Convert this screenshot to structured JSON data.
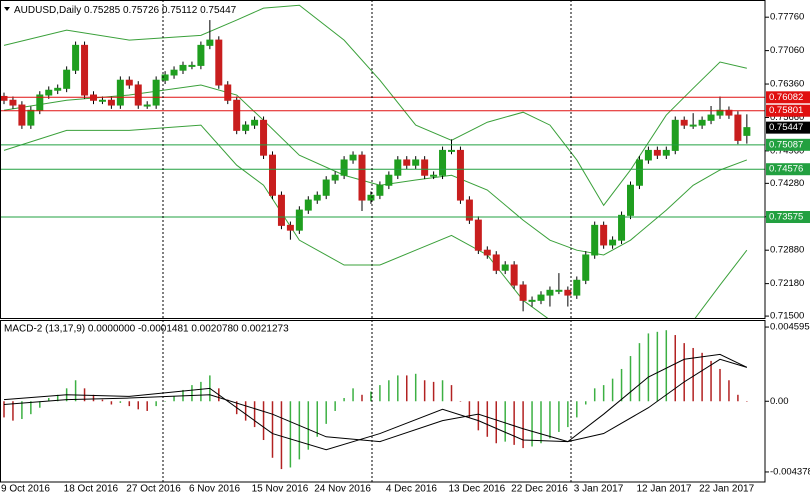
{
  "chart_data": [
    {
      "type": "candlestick",
      "title": "AUDUSD,Daily",
      "categories": [
        "9 Oct 2016",
        null,
        null,
        null,
        null,
        null,
        null,
        "18 Oct 2016",
        null,
        null,
        null,
        null,
        null,
        null,
        "27 Oct 2016",
        null,
        null,
        null,
        null,
        null,
        null,
        "6 Nov 2016",
        null,
        null,
        null,
        null,
        null,
        null,
        "15 Nov 2016",
        null,
        null,
        null,
        null,
        null,
        null,
        "24 Nov 2016",
        null,
        null,
        null,
        null,
        null,
        null,
        null,
        "4 Dec 2016",
        null,
        null,
        null,
        null,
        null,
        null,
        "13 Dec 2016",
        null,
        null,
        null,
        null,
        null,
        null,
        "22 Dec 2016",
        null,
        null,
        null,
        null,
        null,
        null,
        "3 Jan 2017",
        null,
        null,
        null,
        null,
        null,
        null,
        "12 Jan 2017",
        null,
        null,
        null,
        null,
        null,
        null,
        "22 Jan 2017",
        null,
        null,
        null,
        null,
        null
      ],
      "open": [
        0.761,
        0.7602,
        0.7592,
        0.755,
        0.7581,
        0.7613,
        0.7623,
        0.7627,
        0.7665,
        0.7717,
        0.7613,
        0.7602,
        0.7602,
        0.7592,
        0.7644,
        0.7634,
        0.7592,
        0.7592,
        0.7644,
        0.7655,
        0.7665,
        0.7675,
        0.7675,
        0.7717,
        0.7728,
        0.7634,
        0.7602,
        0.7539,
        0.755,
        0.756,
        0.7487,
        0.7403,
        0.734,
        0.733,
        0.7372,
        0.7393,
        0.7403,
        0.7435,
        0.7445,
        0.7477,
        0.7487,
        0.7393,
        0.7403,
        0.7424,
        0.7445,
        0.7477,
        0.7466,
        0.7477,
        0.7445,
        0.7445,
        0.7497,
        0.7497,
        0.7393,
        0.7351,
        0.7288,
        0.7278,
        0.7246,
        0.7257,
        0.7215,
        0.7183,
        0.7183,
        0.7194,
        0.7204,
        0.7204,
        0.7194,
        0.7225,
        0.7278,
        0.734,
        0.7299,
        0.7309,
        0.7361,
        0.7424,
        0.7477,
        0.7497,
        0.7487,
        0.7497,
        0.756,
        0.755,
        0.755,
        0.756,
        0.7571,
        0.7581,
        0.7571,
        0.75285
      ],
      "high": [
        0.7618,
        0.761,
        0.76,
        0.7589,
        0.7621,
        0.7631,
        0.7635,
        0.7673,
        0.7725,
        0.7725,
        0.7621,
        0.761,
        0.761,
        0.7652,
        0.7652,
        0.7642,
        0.76,
        0.7652,
        0.7663,
        0.7673,
        0.7683,
        0.7683,
        0.7725,
        0.777,
        0.7736,
        0.7642,
        0.761,
        0.7558,
        0.7568,
        0.7568,
        0.7495,
        0.7411,
        0.7348,
        0.738,
        0.7401,
        0.7411,
        0.7443,
        0.7453,
        0.7485,
        0.7495,
        0.7495,
        0.7411,
        0.7432,
        0.7453,
        0.7485,
        0.7485,
        0.7485,
        0.7485,
        0.7453,
        0.7505,
        0.752,
        0.7505,
        0.7401,
        0.7359,
        0.7296,
        0.7286,
        0.7265,
        0.7265,
        0.7223,
        0.7191,
        0.7202,
        0.7212,
        0.724,
        0.7212,
        0.7233,
        0.7286,
        0.7348,
        0.7348,
        0.7317,
        0.7369,
        0.7432,
        0.7485,
        0.7505,
        0.7505,
        0.7505,
        0.7568,
        0.7568,
        0.7575,
        0.7568,
        0.759,
        0.761,
        0.7589,
        0.7579,
        0.75726
      ],
      "low": [
        0.7594,
        0.7584,
        0.7542,
        0.7542,
        0.7573,
        0.7605,
        0.7615,
        0.7619,
        0.7657,
        0.7605,
        0.7594,
        0.7594,
        0.7584,
        0.7584,
        0.7626,
        0.7584,
        0.7584,
        0.7584,
        0.7636,
        0.7647,
        0.7657,
        0.7667,
        0.7667,
        0.7709,
        0.7626,
        0.7594,
        0.7531,
        0.7531,
        0.7542,
        0.7479,
        0.7395,
        0.7332,
        0.731,
        0.7322,
        0.7364,
        0.7385,
        0.7395,
        0.7427,
        0.7437,
        0.7469,
        0.737,
        0.7385,
        0.7395,
        0.7416,
        0.7437,
        0.7458,
        0.7458,
        0.7437,
        0.7437,
        0.7437,
        0.7489,
        0.7385,
        0.7343,
        0.728,
        0.727,
        0.7238,
        0.7238,
        0.7207,
        0.716,
        0.717,
        0.7175,
        0.717,
        0.7196,
        0.717,
        0.7186,
        0.7217,
        0.727,
        0.7291,
        0.7291,
        0.7301,
        0.7353,
        0.7416,
        0.7469,
        0.7479,
        0.7479,
        0.7489,
        0.7542,
        0.7542,
        0.7542,
        0.7552,
        0.7563,
        0.7563,
        0.751,
        0.75112
      ],
      "close": [
        0.7602,
        0.7592,
        0.755,
        0.7581,
        0.7613,
        0.7623,
        0.7627,
        0.7665,
        0.7717,
        0.7613,
        0.7602,
        0.7602,
        0.7592,
        0.7644,
        0.7634,
        0.7592,
        0.7592,
        0.7644,
        0.7655,
        0.7665,
        0.7675,
        0.7675,
        0.7717,
        0.7728,
        0.7634,
        0.7602,
        0.7539,
        0.755,
        0.756,
        0.7487,
        0.7403,
        0.734,
        0.733,
        0.7372,
        0.7393,
        0.7403,
        0.7435,
        0.7445,
        0.7477,
        0.7487,
        0.7393,
        0.7403,
        0.7424,
        0.7445,
        0.7477,
        0.7466,
        0.7477,
        0.7445,
        0.7445,
        0.7497,
        0.7497,
        0.7393,
        0.7351,
        0.7288,
        0.7278,
        0.7246,
        0.7257,
        0.7215,
        0.7183,
        0.7183,
        0.7194,
        0.7204,
        0.7204,
        0.7194,
        0.7225,
        0.7278,
        0.734,
        0.7299,
        0.7309,
        0.7361,
        0.7424,
        0.7477,
        0.7497,
        0.7487,
        0.7497,
        0.756,
        0.755,
        0.755,
        0.756,
        0.7571,
        0.7581,
        0.7571,
        0.7518,
        0.75447
      ],
      "up_color": "#1f9e1f",
      "down_color": "#c81e1e",
      "ylim": [
        0.7146,
        0.7812
      ],
      "yticks": [
        {
          "value": 0.7776,
          "label": "0.77760"
        },
        {
          "value": 0.7706,
          "label": "0.77060"
        },
        {
          "value": 0.7636,
          "label": "0.76360"
        },
        {
          "value": 0.7566,
          "label": "0.75660"
        },
        {
          "value": 0.7496,
          "label": "0.74960"
        },
        {
          "value": 0.7428,
          "label": "0.74280"
        },
        {
          "value": 0.7358,
          "label": "0.73580"
        },
        {
          "value": 0.7288,
          "label": "0.72880"
        },
        {
          "value": 0.7218,
          "label": "0.72180"
        },
        {
          "value": 0.715,
          "label": "0.71500"
        }
      ],
      "bands": [
        {
          "color": "#3aa03a",
          "x": [
            0,
            7,
            14,
            22,
            26,
            29,
            33,
            38,
            42,
            46,
            50,
            54,
            58,
            61,
            64,
            67,
            70,
            74,
            77,
            80,
            83
          ],
          "values": [
            0.7717,
            0.7749,
            0.7728,
            0.7738,
            0.777,
            0.7795,
            0.7801,
            0.7728,
            0.7644,
            0.755,
            0.7518,
            0.7556,
            0.7577,
            0.755,
            0.7477,
            0.7382,
            0.7456,
            0.7571,
            0.7627,
            0.7682,
            0.7669
          ]
        },
        {
          "color": "#3aa03a",
          "x": [
            0,
            7,
            14,
            22,
            26,
            29,
            33,
            38,
            42,
            46,
            50,
            54,
            58,
            61,
            64,
            67,
            70,
            74,
            77,
            80,
            83
          ],
          "values": [
            0.7581,
            0.7602,
            0.7613,
            0.7634,
            0.7613,
            0.756,
            0.7487,
            0.7445,
            0.7424,
            0.7435,
            0.7445,
            0.7414,
            0.7351,
            0.7309,
            0.7288,
            0.7278,
            0.7309,
            0.7372,
            0.7424,
            0.7456,
            0.7477
          ]
        },
        {
          "color": "#3aa03a",
          "x": [
            0,
            7,
            14,
            22,
            26,
            29,
            33,
            38,
            42,
            46,
            50,
            54,
            58,
            61,
            64,
            67,
            70,
            74,
            77,
            80,
            83
          ],
          "values": [
            0.7497,
            0.7539,
            0.7539,
            0.755,
            0.7466,
            0.7424,
            0.7309,
            0.7257,
            0.7257,
            0.7288,
            0.7319,
            0.7278,
            0.7183,
            0.7142,
            0.713,
            0.713,
            0.713,
            0.7135,
            0.714,
            0.7215,
            0.7288
          ]
        }
      ],
      "levels": [
        {
          "value": 0.76082,
          "color": "#e01010"
        },
        {
          "value": 0.75801,
          "color": "#e01010"
        },
        {
          "value": 0.75087,
          "color": "#22a040"
        },
        {
          "value": 0.74576,
          "color": "#22a040"
        },
        {
          "value": 0.73575,
          "color": "#22a040"
        }
      ]
    },
    {
      "type": "macd",
      "title": "MACD-2 (13,17,9) 0.0000000 -0.0001481 0.0020780 0.0021273",
      "values": [
        -0.001,
        -0.0012,
        -0.0011,
        -0.0008,
        -0.0004,
        0.0002,
        0.0004,
        0.0008,
        0.0013,
        0.0008,
        0.0004,
        0.0001,
        -0.0002,
        -0.0001,
        -0.0003,
        -0.0005,
        -0.0006,
        -0.0003,
        0.0,
        0.0003,
        0.0007,
        0.001,
        0.0012,
        0.0016,
        0.0008,
        0.0001,
        -0.0008,
        -0.0012,
        -0.0016,
        -0.0024,
        -0.0035,
        -0.0042,
        -0.0041,
        -0.0036,
        -0.003,
        -0.0022,
        -0.0014,
        -0.0006,
        0.0002,
        0.0008,
        0.0004,
        0.0006,
        0.001,
        0.0013,
        0.0016,
        0.0016,
        0.0017,
        0.0013,
        0.0012,
        0.0013,
        0.001,
        0.0,
        -0.001,
        -0.0018,
        -0.0022,
        -0.0026,
        -0.0025,
        -0.0027,
        -0.0029,
        -0.0028,
        -0.0026,
        -0.0023,
        -0.0019,
        -0.0016,
        -0.001,
        -0.0002,
        0.0008,
        0.001,
        0.0014,
        0.002,
        0.0028,
        0.0036,
        0.0042,
        0.0043,
        0.0044,
        0.0041,
        0.0036,
        0.0033,
        0.003,
        0.0025,
        0.002,
        0.0013,
        0.0004,
        0.0
      ],
      "up_color": "#3cb043",
      "down_color": "#b22222",
      "ylim": [
        -0.005,
        0.00497
      ],
      "yticks": [
        0.004595,
        {
          "value": 0,
          "label": "0.00"
        },
        -0.004378
      ],
      "lines": [
        {
          "color": "#000000",
          "x": [
            0,
            7,
            14,
            23,
            30,
            36,
            42,
            49,
            53,
            58,
            63,
            67,
            72,
            76,
            80,
            83
          ],
          "values": [
            0.0001,
            0.0004,
            0.0003,
            0.0008,
            -0.002,
            -0.003,
            -0.002,
            -0.0005,
            -0.0012,
            -0.0024,
            -0.0025,
            -0.0008,
            0.0015,
            0.0026,
            0.0029,
            0.0021
          ]
        },
        {
          "color": "#000000",
          "x": [
            0,
            7,
            14,
            23,
            30,
            36,
            42,
            49,
            53,
            58,
            63,
            67,
            72,
            76,
            80,
            83
          ],
          "values": [
            -0.0002,
            0.0001,
            0.0002,
            0.0004,
            -0.0008,
            -0.0022,
            -0.0025,
            -0.0012,
            -0.0008,
            -0.0017,
            -0.0025,
            -0.002,
            -0.0004,
            0.0012,
            0.0026,
            0.0021
          ]
        }
      ]
    }
  ]
}
